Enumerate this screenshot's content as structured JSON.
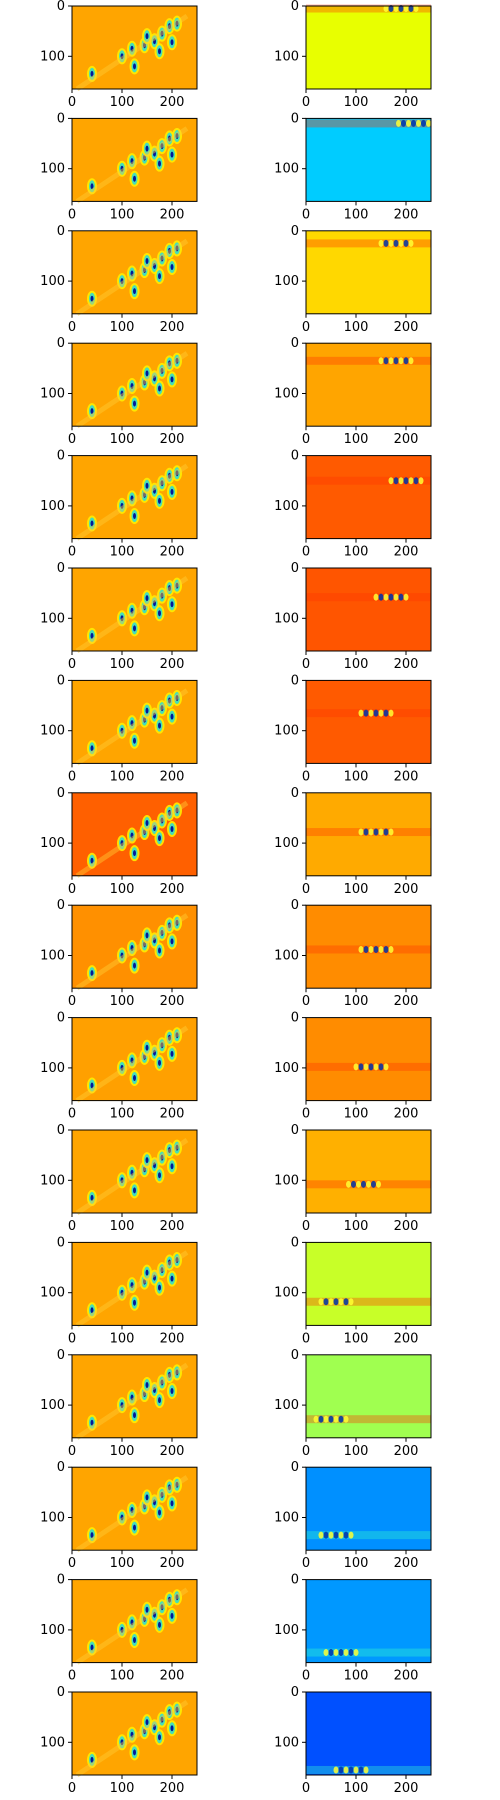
{
  "chart_data": [
    {
      "type": "heatmap",
      "panel": "left",
      "row": 1,
      "xticks": [
        "0",
        "100",
        "200"
      ],
      "yticks": [
        "0",
        "100"
      ],
      "background": "#ffa500"
    },
    {
      "type": "heatmap",
      "panel": "right",
      "row": 1,
      "xticks": [
        "0",
        "100",
        "200"
      ],
      "yticks": [
        "0",
        "100"
      ],
      "background": "#e8ff00"
    },
    {
      "type": "heatmap",
      "panel": "left",
      "row": 2,
      "xticks": [
        "0",
        "100",
        "200"
      ],
      "yticks": [
        "0",
        "100"
      ],
      "background": "#ffa500"
    },
    {
      "type": "heatmap",
      "panel": "right",
      "row": 2,
      "xticks": [
        "0",
        "100",
        "200"
      ],
      "yticks": [
        "0",
        "100"
      ],
      "background": "#00ccff"
    },
    {
      "type": "heatmap",
      "panel": "left",
      "row": 3,
      "xticks": [
        "0",
        "100",
        "200"
      ],
      "yticks": [
        "0",
        "100"
      ],
      "background": "#ffa500"
    },
    {
      "type": "heatmap",
      "panel": "right",
      "row": 3,
      "xticks": [
        "0",
        "100",
        "200"
      ],
      "yticks": [
        "0",
        "100"
      ],
      "background": "#ffd800"
    },
    {
      "type": "heatmap",
      "panel": "left",
      "row": 4,
      "xticks": [
        "0",
        "100",
        "200"
      ],
      "yticks": [
        "0",
        "100"
      ],
      "background": "#ffa500"
    },
    {
      "type": "heatmap",
      "panel": "right",
      "row": 4,
      "xticks": [
        "0",
        "100",
        "200"
      ],
      "yticks": [
        "0",
        "100"
      ],
      "background": "#ffa500"
    },
    {
      "type": "heatmap",
      "panel": "left",
      "row": 5,
      "xticks": [
        "0",
        "100",
        "200"
      ],
      "yticks": [
        "0",
        "100"
      ],
      "background": "#ffa500"
    },
    {
      "type": "heatmap",
      "panel": "right",
      "row": 5,
      "xticks": [
        "0",
        "100",
        "200"
      ],
      "yticks": [
        "0",
        "100"
      ],
      "background": "#ff5a00"
    },
    {
      "type": "heatmap",
      "panel": "left",
      "row": 6,
      "xticks": [
        "0",
        "100",
        "200"
      ],
      "yticks": [
        "0",
        "100"
      ],
      "background": "#ffa500"
    },
    {
      "type": "heatmap",
      "panel": "right",
      "row": 6,
      "xticks": [
        "0",
        "100",
        "200"
      ],
      "yticks": [
        "0",
        "100"
      ],
      "background": "#ff5500"
    },
    {
      "type": "heatmap",
      "panel": "left",
      "row": 7,
      "xticks": [
        "0",
        "100",
        "200"
      ],
      "yticks": [
        "0",
        "100"
      ],
      "background": "#ffa500"
    },
    {
      "type": "heatmap",
      "panel": "right",
      "row": 7,
      "xticks": [
        "0",
        "100",
        "200"
      ],
      "yticks": [
        "0",
        "100"
      ],
      "background": "#ff5a00"
    },
    {
      "type": "heatmap",
      "panel": "left",
      "row": 8,
      "xticks": [
        "0",
        "100",
        "200"
      ],
      "yticks": [
        "0",
        "100"
      ],
      "background": "#ff6000"
    },
    {
      "type": "heatmap",
      "panel": "right",
      "row": 8,
      "xticks": [
        "0",
        "100",
        "200"
      ],
      "yticks": [
        "0",
        "100"
      ],
      "background": "#ffaa00"
    },
    {
      "type": "heatmap",
      "panel": "left",
      "row": 9,
      "xticks": [
        "0",
        "100",
        "200"
      ],
      "yticks": [
        "0",
        "100"
      ],
      "background": "#ff9000"
    },
    {
      "type": "heatmap",
      "panel": "right",
      "row": 9,
      "xticks": [
        "0",
        "100",
        "200"
      ],
      "yticks": [
        "0",
        "100"
      ],
      "background": "#ff8c00"
    },
    {
      "type": "heatmap",
      "panel": "left",
      "row": 10,
      "xticks": [
        "0",
        "100",
        "200"
      ],
      "yticks": [
        "0",
        "100"
      ],
      "background": "#ffa000"
    },
    {
      "type": "heatmap",
      "panel": "right",
      "row": 10,
      "xticks": [
        "0",
        "100",
        "200"
      ],
      "yticks": [
        "0",
        "100"
      ],
      "background": "#ff8c00"
    },
    {
      "type": "heatmap",
      "panel": "left",
      "row": 11,
      "xticks": [
        "0",
        "100",
        "200"
      ],
      "yticks": [
        "0",
        "100"
      ],
      "background": "#ffa500"
    },
    {
      "type": "heatmap",
      "panel": "right",
      "row": 11,
      "xticks": [
        "0",
        "100",
        "200"
      ],
      "yticks": [
        "0",
        "100"
      ],
      "background": "#ffb000"
    },
    {
      "type": "heatmap",
      "panel": "left",
      "row": 12,
      "xticks": [
        "0",
        "100",
        "200"
      ],
      "yticks": [
        "0",
        "100"
      ],
      "background": "#ffa500"
    },
    {
      "type": "heatmap",
      "panel": "right",
      "row": 12,
      "xticks": [
        "0",
        "100",
        "200"
      ],
      "yticks": [
        "0",
        "100"
      ],
      "background": "#c8ff28"
    },
    {
      "type": "heatmap",
      "panel": "left",
      "row": 13,
      "xticks": [
        "0",
        "100",
        "200"
      ],
      "yticks": [
        "0",
        "100"
      ],
      "background": "#ffa500"
    },
    {
      "type": "heatmap",
      "panel": "right",
      "row": 13,
      "xticks": [
        "0",
        "100",
        "200"
      ],
      "yticks": [
        "0",
        "100"
      ],
      "background": "#a0ff50"
    },
    {
      "type": "heatmap",
      "panel": "left",
      "row": 14,
      "xticks": [
        "0",
        "100",
        "200"
      ],
      "yticks": [
        "0",
        "100"
      ],
      "background": "#ffa500"
    },
    {
      "type": "heatmap",
      "panel": "right",
      "row": 14,
      "xticks": [
        "0",
        "100",
        "200"
      ],
      "yticks": [
        "0",
        "100"
      ],
      "background": "#0090ff"
    },
    {
      "type": "heatmap",
      "panel": "left",
      "row": 15,
      "xticks": [
        "0",
        "100",
        "200"
      ],
      "yticks": [
        "0",
        "100"
      ],
      "background": "#ffa500"
    },
    {
      "type": "heatmap",
      "panel": "right",
      "row": 15,
      "xticks": [
        "0",
        "100",
        "200"
      ],
      "yticks": [
        "0",
        "100"
      ],
      "background": "#0098ff"
    },
    {
      "type": "heatmap",
      "panel": "left",
      "row": 16,
      "xticks": [
        "0",
        "100",
        "200"
      ],
      "yticks": [
        "0",
        "100"
      ],
      "background": "#ffa500"
    },
    {
      "type": "heatmap",
      "panel": "right",
      "row": 16,
      "xticks": [
        "0",
        "100",
        "200"
      ],
      "yticks": [
        "0",
        "100"
      ],
      "background": "#0050ff"
    }
  ]
}
